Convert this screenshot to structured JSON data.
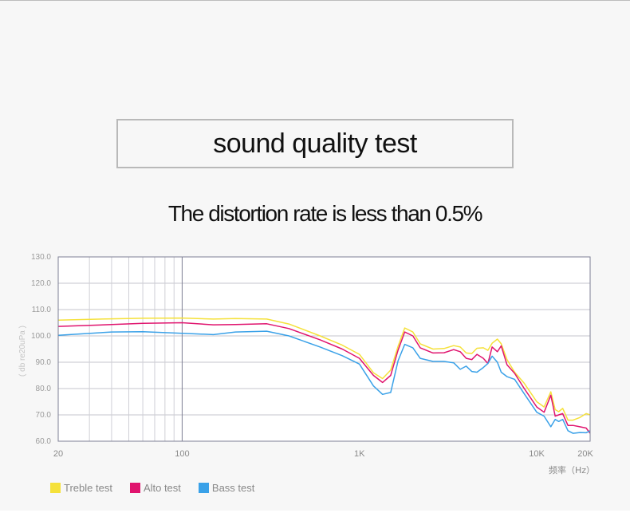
{
  "header": {
    "title": "sound quality test",
    "subtitle": "The distortion rate is less than 0.5%"
  },
  "chart_data": {
    "type": "line",
    "x_scale": "log",
    "xlim": [
      20,
      20000
    ],
    "ylim": [
      60,
      130
    ],
    "xticks": [
      {
        "value": 20,
        "label": "20"
      },
      {
        "value": 100,
        "label": "100"
      },
      {
        "value": 1000,
        "label": "1K"
      },
      {
        "value": 10000,
        "label": "10K"
      },
      {
        "value": 20000,
        "label": "20K"
      }
    ],
    "yticks": [
      {
        "value": 130,
        "label": "130.0"
      },
      {
        "value": 120,
        "label": "120.0"
      },
      {
        "value": 110,
        "label": "110.0"
      },
      {
        "value": 100,
        "label": "100.0"
      },
      {
        "value": 90,
        "label": "90.0"
      },
      {
        "value": 80,
        "label": "80.0"
      },
      {
        "value": 70,
        "label": "70.0"
      },
      {
        "value": 60,
        "label": "60.0"
      }
    ],
    "vgrid_values": [
      30,
      40,
      50,
      60,
      70,
      80,
      90,
      100
    ],
    "ylabel": "( db re20uPa )",
    "xlabel": "频率（Hz）",
    "grid": true,
    "legend_placement": "bottom-left",
    "series": [
      {
        "name": "Treble test",
        "color": "#f5e13a",
        "x": [
          20,
          40,
          60,
          100,
          150,
          200,
          300,
          400,
          600,
          800,
          1000,
          1200,
          1350,
          1500,
          1650,
          1800,
          2000,
          2200,
          2600,
          3000,
          3400,
          3700,
          4000,
          4300,
          4600,
          5000,
          5300,
          5600,
          6000,
          6300,
          6800,
          7500,
          8500,
          10000,
          11000,
          12000,
          12700,
          13300,
          14000,
          15000,
          16000,
          17500,
          19000,
          20000
        ],
        "y": [
          106,
          106.5,
          106.7,
          106.8,
          106.4,
          106.6,
          106.4,
          104.5,
          100,
          96.5,
          93,
          86,
          83.8,
          87,
          96,
          103,
          101.5,
          97,
          95,
          95.2,
          96.3,
          95.8,
          93.5,
          93.3,
          95.3,
          95.5,
          94.5,
          97.2,
          98.8,
          97,
          91,
          86.2,
          82,
          75,
          73,
          78.8,
          72,
          71.2,
          72.5,
          68,
          68,
          69,
          70.5,
          70
        ]
      },
      {
        "name": "Alto test",
        "color": "#e0146e",
        "x": [
          20,
          40,
          60,
          100,
          150,
          200,
          300,
          400,
          600,
          800,
          1000,
          1200,
          1350,
          1500,
          1650,
          1800,
          2000,
          2200,
          2600,
          3000,
          3400,
          3700,
          4000,
          4300,
          4600,
          5000,
          5300,
          5600,
          6000,
          6300,
          6800,
          7500,
          8500,
          10000,
          11000,
          12000,
          12700,
          13300,
          14000,
          15000,
          16000,
          17500,
          19000,
          20000
        ],
        "y": [
          103.6,
          104.3,
          104.8,
          105,
          104.2,
          104.3,
          104.6,
          102.8,
          98.5,
          95,
          91.5,
          85,
          82.3,
          85,
          94.5,
          101.5,
          100,
          95.5,
          93.5,
          93.6,
          94.8,
          94,
          91.5,
          91,
          93,
          91.5,
          89.5,
          95.8,
          94,
          96.2,
          89,
          85.8,
          80,
          73,
          71,
          77.5,
          69.5,
          70,
          70.5,
          66,
          66,
          65.5,
          65,
          63
        ]
      },
      {
        "name": "Bass test",
        "color": "#3aa1e8",
        "x": [
          20,
          40,
          60,
          100,
          150,
          200,
          300,
          400,
          600,
          800,
          1000,
          1200,
          1350,
          1500,
          1650,
          1800,
          2000,
          2200,
          2600,
          3000,
          3400,
          3700,
          4000,
          4300,
          4600,
          5000,
          5300,
          5600,
          6000,
          6300,
          6800,
          7500,
          8500,
          10000,
          11000,
          12000,
          12700,
          13300,
          14000,
          15000,
          16000,
          17500,
          19000,
          20000
        ],
        "y": [
          100.2,
          101.5,
          101.6,
          101,
          100.5,
          101.5,
          101.8,
          100,
          95.8,
          92.5,
          89.3,
          81,
          77.8,
          78.5,
          90.5,
          96.8,
          95.5,
          91.5,
          90.3,
          90.3,
          89.8,
          87.3,
          88.5,
          86.5,
          86.2,
          88,
          89.5,
          92.3,
          90,
          86.2,
          84.5,
          83.5,
          78,
          71,
          69.5,
          65.5,
          68.3,
          67.5,
          68.3,
          64,
          63,
          63.3,
          63.2,
          64
        ]
      }
    ]
  }
}
